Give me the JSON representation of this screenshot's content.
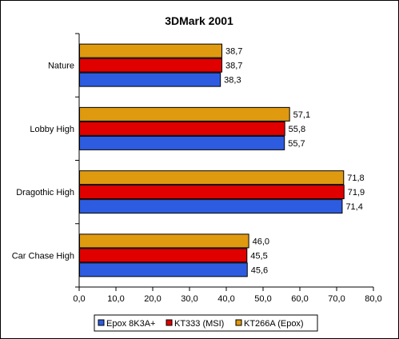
{
  "chart_data": {
    "type": "bar",
    "orientation": "horizontal",
    "title": "3DMark 2001",
    "xlabel": "",
    "ylabel": "",
    "categories": [
      "Nature",
      "Lobby High",
      "Dragothic High",
      "Car Chase High"
    ],
    "series": [
      {
        "name": "KT266A (Epox)",
        "color": "#E09A10",
        "values": [
          38.7,
          57.1,
          71.8,
          46.0
        ],
        "labels": [
          "38,7",
          "57,1",
          "71,8",
          "46,0"
        ]
      },
      {
        "name": "KT333 (MSI)",
        "color": "#E00000",
        "values": [
          38.7,
          55.8,
          71.9,
          45.5
        ],
        "labels": [
          "38,7",
          "55,8",
          "71,9",
          "45,5"
        ]
      },
      {
        "name": "Epox 8K3A+",
        "color": "#2E5CE0",
        "values": [
          38.3,
          55.7,
          71.4,
          45.6
        ],
        "labels": [
          "38,3",
          "55,7",
          "71,4",
          "45,6"
        ]
      }
    ],
    "legend_order": [
      "Epox 8K3A+",
      "KT333 (MSI)",
      "KT266A (Epox)"
    ],
    "xlim": [
      0,
      80
    ],
    "xticks": [
      0,
      10,
      20,
      30,
      40,
      50,
      60,
      70,
      80
    ],
    "xtick_labels": [
      "0,0",
      "10,0",
      "20,0",
      "30,0",
      "40,0",
      "50,0",
      "60,0",
      "70,0",
      "80,0"
    ],
    "grid": false,
    "legend_position": "bottom"
  }
}
